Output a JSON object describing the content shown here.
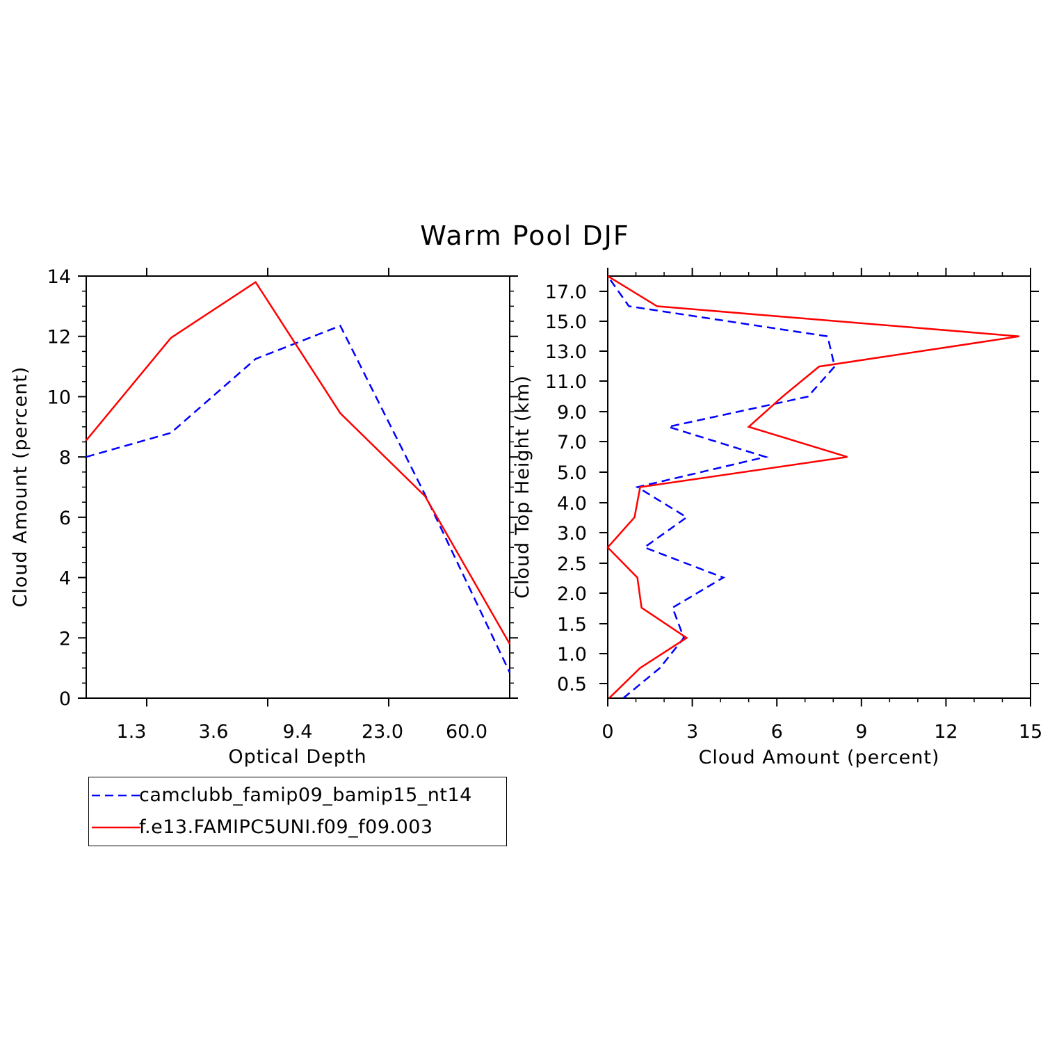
{
  "title": "Warm Pool DJF",
  "colors": {
    "series1": "#0000ff",
    "series2": "#ff0000",
    "axes": "#000000"
  },
  "legend": {
    "items": [
      {
        "label": "camclubb_famip09_bamip15_nt14",
        "style": "dashed",
        "color": "#0000ff"
      },
      {
        "label": "f.e13.FAMIPC5UNI.f09_f09.003",
        "style": "solid",
        "color": "#ff0000"
      }
    ]
  },
  "chart_data": [
    {
      "type": "line",
      "xlabel": "Optical Depth",
      "ylabel": "Cloud Amount (percent)",
      "xtick_labels": [
        "1.3",
        "3.6",
        "9.4",
        "23.0",
        "60.0"
      ],
      "x_bins": 7,
      "ylim": [
        0,
        14
      ],
      "yticks": [
        0,
        2,
        4,
        6,
        8,
        10,
        12,
        14
      ],
      "series": [
        {
          "name": "camclubb_famip09_bamip15_nt14",
          "style": "dashed",
          "values": [
            8.0,
            8.8,
            11.25,
            12.35,
            6.75,
            0.85
          ]
        },
        {
          "name": "f.e13.FAMIPC5UNI.f09_f09.003",
          "style": "solid",
          "values": [
            8.55,
            11.95,
            13.8,
            9.45,
            6.7,
            1.8
          ]
        }
      ]
    },
    {
      "type": "line",
      "orientation": "vertical-profile",
      "xlabel": "Cloud Amount (percent)",
      "ylabel": "Cloud Top Height (km)",
      "xlim": [
        0,
        15
      ],
      "xticks": [
        0,
        3,
        6,
        9,
        12,
        15
      ],
      "ytick_labels": [
        "0.5",
        "1.0",
        "1.5",
        "2.0",
        "2.5",
        "3.0",
        "4.0",
        "5.0",
        "7.0",
        "9.0",
        "11.0",
        "13.0",
        "15.0",
        "17.0"
      ],
      "series": [
        {
          "name": "camclubb_famip09_bamip15_nt14",
          "style": "dashed",
          "values": [
            0.55,
            1.85,
            2.7,
            2.3,
            4.1,
            1.3,
            2.8,
            1.05,
            5.6,
            2.15,
            7.1,
            8.05,
            7.8,
            0.75,
            0.0
          ]
        },
        {
          "name": "f.e13.FAMIPC5UNI.f09_f09.003",
          "style": "solid",
          "values": [
            0.05,
            1.15,
            2.8,
            1.2,
            1.05,
            0.0,
            0.95,
            1.15,
            8.5,
            5.0,
            6.2,
            7.5,
            14.6,
            1.75,
            0.0
          ]
        }
      ]
    }
  ]
}
